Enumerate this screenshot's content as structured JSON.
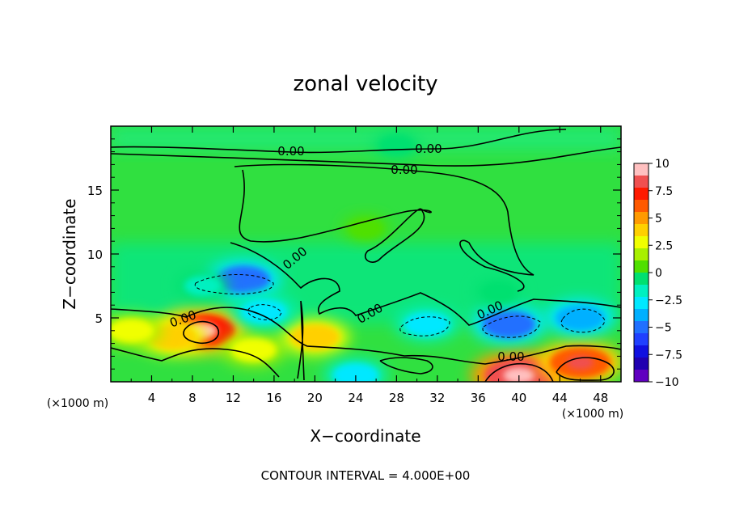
{
  "chart_data": {
    "type": "heatmap",
    "title": "zonal velocity",
    "xlabel": "X−coordinate",
    "ylabel": "Z−coordinate",
    "x_unit_left": "(×1000 m)",
    "x_unit_right": "(×1000 m)",
    "xlim": [
      0,
      50
    ],
    "ylim": [
      0,
      20
    ],
    "x_ticks": [
      4,
      8,
      12,
      16,
      20,
      24,
      28,
      32,
      36,
      40,
      44,
      48
    ],
    "y_ticks": [
      5,
      10,
      15
    ],
    "colorbar": {
      "range": [
        -10,
        10
      ],
      "ticks": [
        "10",
        "7.5",
        "5",
        "2.5",
        "0",
        "−2.5",
        "−5",
        "−7.5",
        "−10"
      ],
      "colors": [
        "#ffc0c0",
        "#f05050",
        "#ff1a00",
        "#ff5a00",
        "#ff9a00",
        "#ffd000",
        "#f0ff00",
        "#a8f000",
        "#50e000",
        "#00e070",
        "#00f0c0",
        "#00e8ff",
        "#00b0ff",
        "#2070ff",
        "#2040ff",
        "#1010e0",
        "#2000b0",
        "#6000c0"
      ]
    },
    "contour_interval_text": "CONTOUR INTERVAL = 4.000E+00",
    "contour_labels": [
      "0.00",
      "0.00",
      "0.00",
      "0.00",
      "0.00",
      "0.00",
      "0.00",
      "0.00"
    ],
    "features": [
      {
        "x": 9,
        "z": 4,
        "value": 9
      },
      {
        "x": 40,
        "z": 0.5,
        "value": 10
      },
      {
        "x": 46,
        "z": 1.5,
        "value": 8
      },
      {
        "x": 6,
        "z": 3.5,
        "value": 5
      },
      {
        "x": 14,
        "z": 2.5,
        "value": 4
      },
      {
        "x": 20,
        "z": 3.5,
        "value": 5
      },
      {
        "x": 2,
        "z": 4,
        "value": 4
      },
      {
        "x": 13,
        "z": 8,
        "value": -6
      },
      {
        "x": 15,
        "z": 5.5,
        "value": -4
      },
      {
        "x": 31,
        "z": 4.5,
        "value": -4
      },
      {
        "x": 39,
        "z": 4.5,
        "value": -6
      },
      {
        "x": 46,
        "z": 5,
        "value": -5
      },
      {
        "x": 24,
        "z": 0.5,
        "value": -4
      },
      {
        "x": 9,
        "z": 7.5,
        "value": -2
      },
      {
        "x": 38,
        "z": 7,
        "value": -1
      },
      {
        "x": 25,
        "z": 12,
        "value": 1
      },
      {
        "x": 28,
        "z": 18.5,
        "value": -1
      }
    ]
  }
}
